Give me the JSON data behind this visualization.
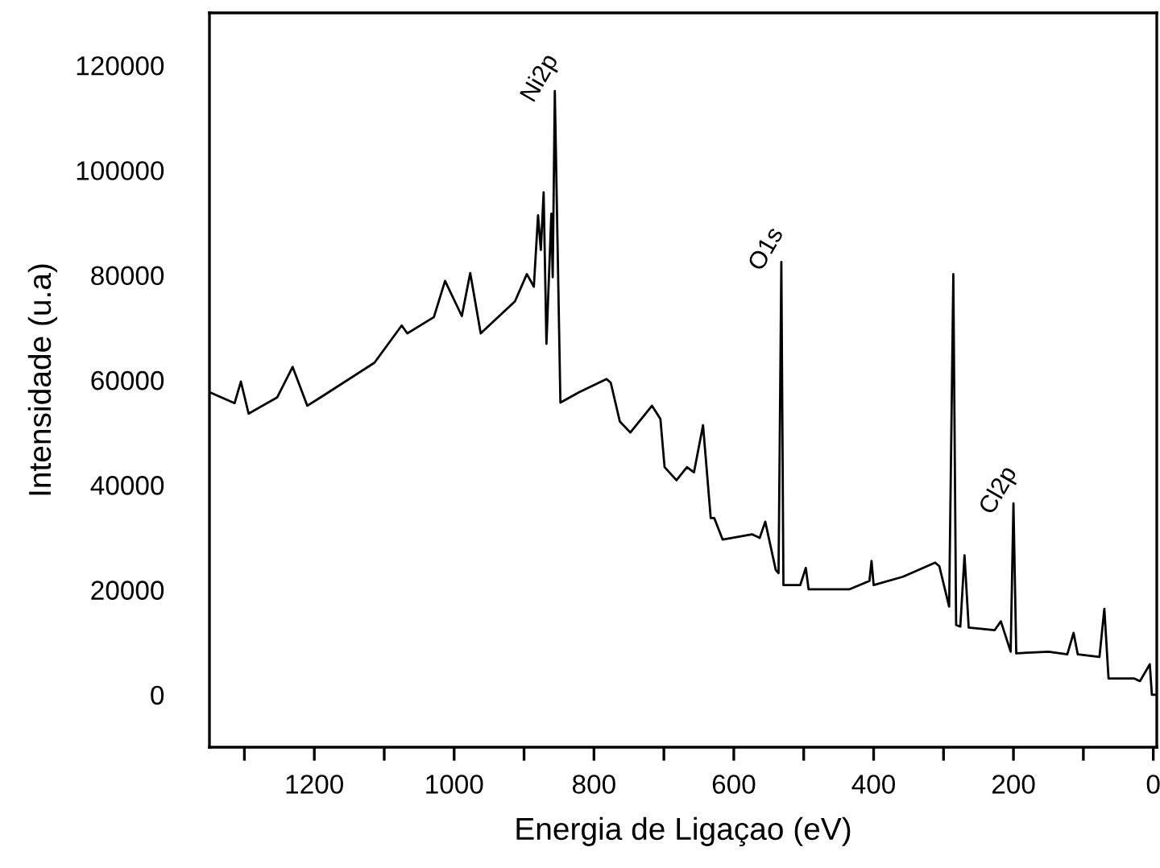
{
  "chart_data": {
    "type": "line",
    "xlabel": "Energia de Ligaçao (eV)",
    "ylabel": "Intensidade (u.a)",
    "x": [
      1350,
      1314,
      1305,
      1294,
      1253,
      1231,
      1210,
      1191,
      1114,
      1075,
      1067,
      1029,
      1013,
      989,
      977,
      962,
      913,
      896,
      886,
      880,
      876,
      872,
      868,
      861,
      859,
      856,
      848,
      821,
      782,
      776,
      763,
      748,
      717,
      705,
      699,
      682,
      667,
      657,
      644,
      633,
      628,
      616,
      574,
      563,
      555,
      540,
      536,
      532,
      529,
      505,
      497,
      493,
      435,
      406,
      403,
      400,
      358,
      312,
      306,
      292,
      286,
      282,
      276,
      270,
      264,
      227,
      218,
      204,
      200,
      196,
      150,
      123,
      114,
      108,
      77,
      70,
      64,
      27,
      19,
      5,
      2,
      -5
    ],
    "series": [
      {
        "color": "#000000",
        "values": [
          57700,
          55600,
          59700,
          53600,
          56700,
          62500,
          55100,
          56700,
          63300,
          70400,
          68900,
          72000,
          78900,
          72200,
          80400,
          68900,
          75000,
          80200,
          77800,
          91400,
          84800,
          95800,
          66900,
          91700,
          79600,
          115100,
          55700,
          57700,
          60200,
          59500,
          52100,
          50000,
          55100,
          52600,
          43400,
          40900,
          43400,
          42400,
          51400,
          33700,
          33700,
          29600,
          30600,
          29900,
          33000,
          23800,
          23200,
          82500,
          20900,
          20900,
          24200,
          20100,
          20100,
          21700,
          25500,
          20900,
          22500,
          25200,
          24500,
          16800,
          80200,
          13300,
          13000,
          26600,
          12800,
          12300,
          14000,
          8200,
          36500,
          7900,
          8200,
          7700,
          11800,
          7700,
          7200,
          16400,
          3100,
          3100,
          2600,
          5800,
          0,
          0
        ]
      }
    ],
    "xlim": [
      1350,
      -5
    ],
    "ylim": [
      -10000,
      130000
    ],
    "xticks": [
      {
        "value": 1300,
        "label": null
      },
      1200,
      {
        "value": 1100,
        "label": null
      },
      1000,
      {
        "value": 900,
        "label": null
      },
      800,
      {
        "value": 700,
        "label": null
      },
      600,
      {
        "value": 500,
        "label": null
      },
      400,
      {
        "value": 300,
        "label": null
      },
      200,
      {
        "value": 100,
        "label": null
      },
      0
    ],
    "yticks": [
      0,
      20000,
      40000,
      60000,
      80000,
      100000,
      120000
    ],
    "annotations": [
      {
        "text": "Ni2p",
        "x": 856,
        "y": 115100
      },
      {
        "text": "O1s",
        "x": 532,
        "y": 82500
      },
      {
        "text": "Cl2p",
        "x": 200,
        "y": 36500
      }
    ],
    "grid": false,
    "legend": false,
    "marker": "none",
    "line_style": "solid"
  }
}
